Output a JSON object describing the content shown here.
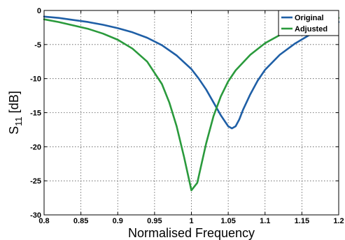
{
  "chart_data": {
    "type": "line",
    "xlabel": "Normalised Frequency",
    "ylabel_main": "S",
    "ylabel_sub": "11",
    "ylabel_unit": " [dB]",
    "xlim": [
      0.8,
      1.2
    ],
    "ylim": [
      -30,
      0
    ],
    "x_ticks": [
      0.8,
      0.85,
      0.9,
      0.95,
      1,
      1.05,
      1.1,
      1.15,
      1.2
    ],
    "x_tick_labels": [
      "0.8",
      "0.85",
      "0.9",
      "0.95",
      "1",
      "1.05",
      "1.1",
      "1.15",
      "1.2"
    ],
    "y_ticks": [
      0,
      -5,
      -10,
      -15,
      -20,
      -25,
      -30
    ],
    "y_tick_labels": [
      "0",
      "-5",
      "-10",
      "-15",
      "-20",
      "-25",
      "-30"
    ],
    "grid": true,
    "legend_position": "top-right",
    "series": [
      {
        "name": "Original",
        "color": "#1f5fa6",
        "x": [
          0.8,
          0.82,
          0.84,
          0.86,
          0.88,
          0.9,
          0.92,
          0.94,
          0.96,
          0.98,
          1.0,
          1.01,
          1.02,
          1.03,
          1.04,
          1.05,
          1.055,
          1.06,
          1.065,
          1.07,
          1.08,
          1.09,
          1.1,
          1.12,
          1.14,
          1.16,
          1.18,
          1.2
        ],
        "y": [
          -0.9,
          -1.1,
          -1.4,
          -1.7,
          -2.1,
          -2.6,
          -3.2,
          -4.0,
          -5.1,
          -6.6,
          -8.6,
          -10.0,
          -11.6,
          -13.5,
          -15.4,
          -17.0,
          -17.3,
          -17.0,
          -16.0,
          -14.6,
          -12.3,
          -10.3,
          -8.7,
          -6.5,
          -4.9,
          -3.6,
          -2.6,
          -1.7
        ]
      },
      {
        "name": "Adjusted",
        "color": "#2a9a3c",
        "x": [
          0.8,
          0.82,
          0.84,
          0.86,
          0.88,
          0.9,
          0.92,
          0.94,
          0.96,
          0.97,
          0.98,
          0.99,
          1.0,
          1.008,
          1.02,
          1.03,
          1.04,
          1.05,
          1.06,
          1.08,
          1.1,
          1.12,
          1.14,
          1.16,
          1.18,
          1.2
        ],
        "y": [
          -1.3,
          -1.7,
          -2.2,
          -2.7,
          -3.4,
          -4.3,
          -5.6,
          -7.5,
          -10.8,
          -13.5,
          -17.0,
          -21.5,
          -26.4,
          -25.3,
          -19.5,
          -15.5,
          -12.6,
          -10.4,
          -8.8,
          -6.5,
          -4.8,
          -3.6,
          -2.7,
          -2.0,
          -1.5,
          -1.1
        ]
      }
    ]
  }
}
